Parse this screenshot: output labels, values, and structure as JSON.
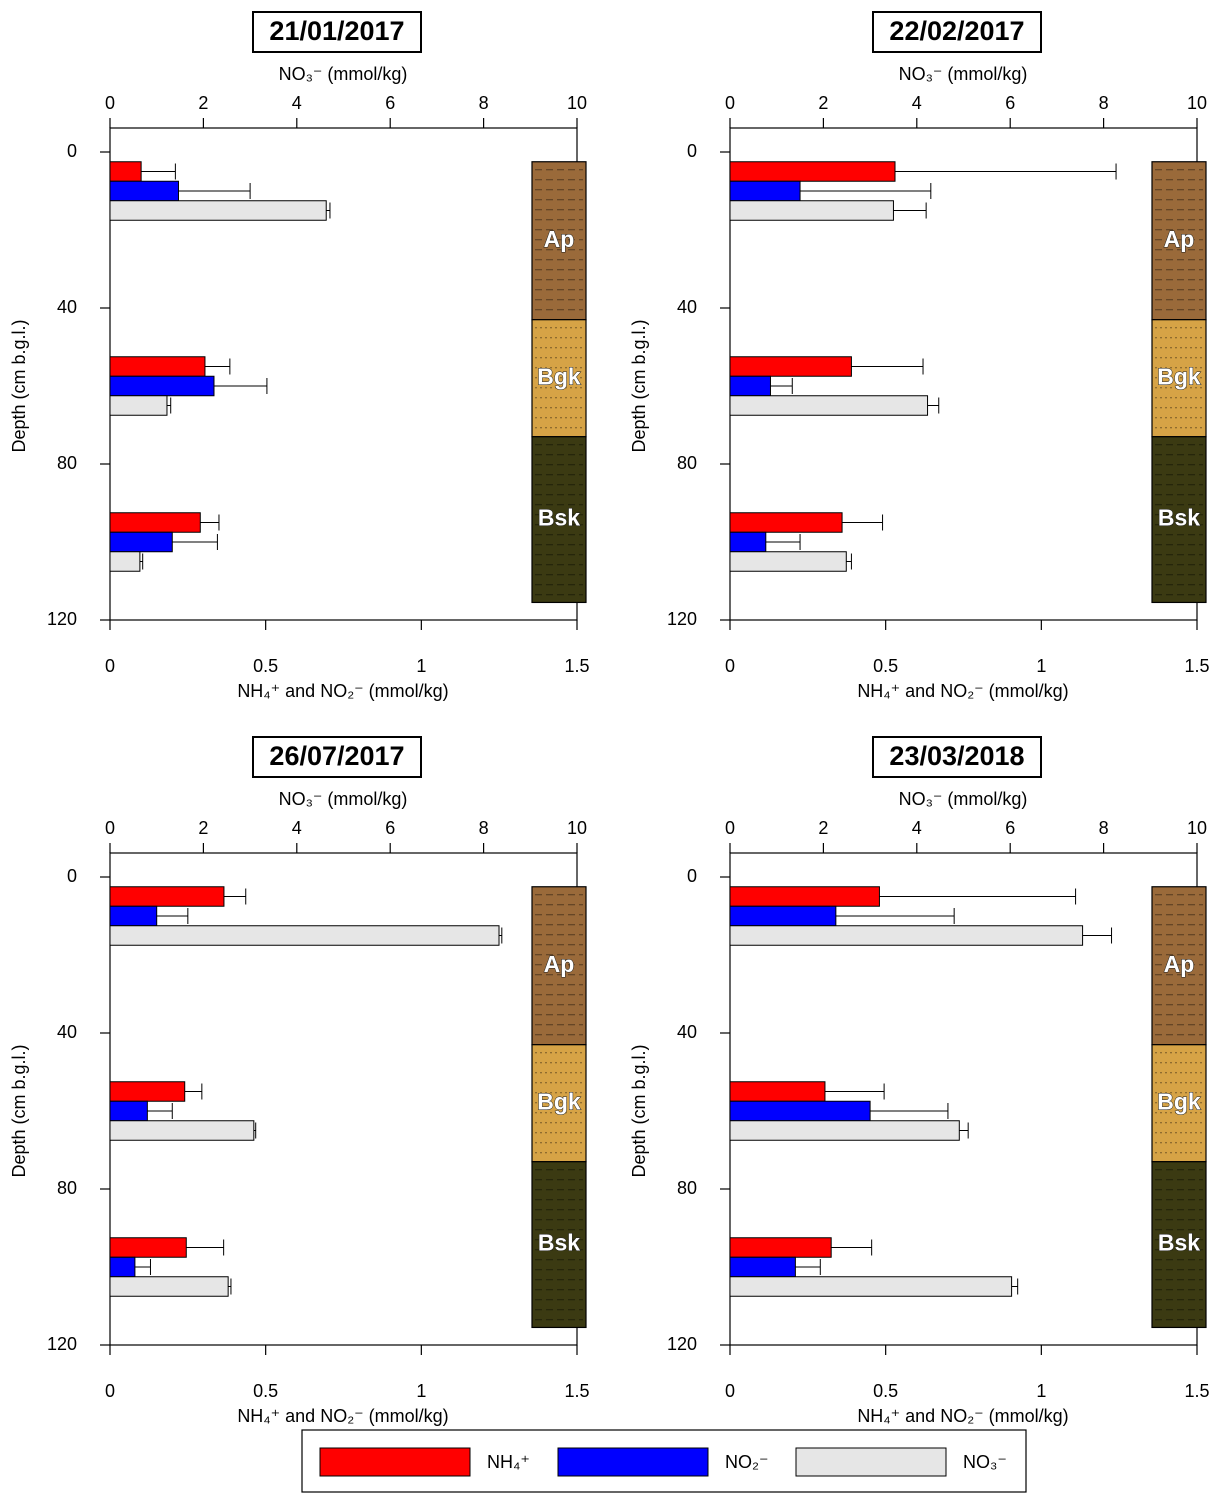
{
  "legend": [
    {
      "name": "NH₄⁺",
      "color": "#ff0000"
    },
    {
      "name": "NO₂⁻",
      "color": "#0000ff"
    },
    {
      "name": "NO₃⁻",
      "color": "#e6e6e6"
    }
  ],
  "chart_data": [
    {
      "type": "bar",
      "title": "21/01/2017",
      "x_label": "NH₄⁺ and NO₂⁻ (mmol/kg)",
      "x2_label": "NO₃⁻ (mmol/kg)",
      "y_label": "Depth (cm b.g.l.)",
      "y": [
        10,
        60,
        100
      ],
      "invert_y": true,
      "xlim": [
        0,
        1.5
      ],
      "xticks": [
        0,
        0.5,
        1,
        1.5
      ],
      "x2lim": [
        0,
        10
      ],
      "x2ticks": [
        0,
        2,
        4,
        6,
        8,
        10
      ],
      "ylim": [
        0,
        120
      ],
      "yticks": [
        0,
        40,
        80,
        120
      ],
      "series": [
        {
          "values": [
            0.1,
            0.305,
            0.29
          ],
          "errors": [
            0.11,
            0.08,
            0.06
          ]
        },
        {
          "values": [
            0.22,
            0.334,
            0.2
          ],
          "errors": [
            0.23,
            0.17,
            0.145
          ]
        },
        {
          "values": [
            4.63,
            1.22,
            0.64
          ],
          "errors": [
            0.08,
            0.08,
            0.06
          ],
          "axis": "x2"
        }
      ],
      "horizons": [
        {
          "name": "Ap",
          "top": 2.5,
          "bottom": 43,
          "color": "#9a6a3a"
        },
        {
          "name": "Bgk",
          "top": 43,
          "bottom": 73,
          "color": "#d6a346"
        },
        {
          "name": "Bsk",
          "top": 73,
          "bottom": 115.5,
          "color": "#3b3a12"
        }
      ]
    },
    {
      "type": "bar",
      "title": "22/02/2017",
      "x_label": "NH₄⁺ and NO₂⁻ (mmol/kg)",
      "x2_label": "NO₃⁻ (mmol/kg)",
      "y_label": "Depth (cm b.g.l.)",
      "y": [
        10,
        60,
        100
      ],
      "invert_y": true,
      "xlim": [
        0,
        1.5
      ],
      "xticks": [
        0,
        0.5,
        1,
        1.5
      ],
      "x2lim": [
        0,
        10
      ],
      "x2ticks": [
        0,
        2,
        4,
        6,
        8,
        10
      ],
      "ylim": [
        0,
        120
      ],
      "yticks": [
        0,
        40,
        80,
        120
      ],
      "series": [
        {
          "values": [
            0.53,
            0.39,
            0.36
          ],
          "errors": [
            0.71,
            0.23,
            0.13
          ]
        },
        {
          "values": [
            0.225,
            0.13,
            0.115
          ],
          "errors": [
            0.42,
            0.07,
            0.11
          ]
        },
        {
          "values": [
            3.5,
            4.23,
            2.49
          ],
          "errors": [
            0.7,
            0.24,
            0.11
          ],
          "axis": "x2"
        }
      ],
      "horizons": [
        {
          "name": "Ap",
          "top": 2.5,
          "bottom": 43,
          "color": "#9a6a3a"
        },
        {
          "name": "Bgk",
          "top": 43,
          "bottom": 73,
          "color": "#d6a346"
        },
        {
          "name": "Bsk",
          "top": 73,
          "bottom": 115.5,
          "color": "#3b3a12"
        }
      ]
    },
    {
      "type": "bar",
      "title": "26/07/2017",
      "x_label": "NH₄⁺ and NO₂⁻ (mmol/kg)",
      "x2_label": "NO₃⁻ (mmol/kg)",
      "y_label": "Depth (cm b.g.l.)",
      "y": [
        10,
        60,
        100
      ],
      "invert_y": true,
      "xlim": [
        0,
        1.5
      ],
      "xticks": [
        0,
        0.5,
        1,
        1.5
      ],
      "x2lim": [
        0,
        10
      ],
      "x2ticks": [
        0,
        2,
        4,
        6,
        8,
        10
      ],
      "ylim": [
        0,
        120
      ],
      "yticks": [
        0,
        40,
        80,
        120
      ],
      "series": [
        {
          "values": [
            0.366,
            0.24,
            0.245
          ],
          "errors": [
            0.07,
            0.055,
            0.12
          ]
        },
        {
          "values": [
            0.15,
            0.12,
            0.08
          ],
          "errors": [
            0.1,
            0.08,
            0.05
          ]
        },
        {
          "values": [
            8.33,
            3.08,
            2.53
          ],
          "errors": [
            0.06,
            0.04,
            0.06
          ],
          "axis": "x2"
        }
      ],
      "horizons": [
        {
          "name": "Ap",
          "top": 2.5,
          "bottom": 43,
          "color": "#9a6a3a"
        },
        {
          "name": "Bgk",
          "top": 43,
          "bottom": 73,
          "color": "#d6a346"
        },
        {
          "name": "Bsk",
          "top": 73,
          "bottom": 115.5,
          "color": "#3b3a12"
        }
      ]
    },
    {
      "type": "bar",
      "title": "23/03/2018",
      "x_label": "NH₄⁺ and NO₂⁻ (mmol/kg)",
      "x2_label": "NO₃⁻ (mmol/kg)",
      "y_label": "Depth (cm b.g.l.)",
      "y": [
        10,
        60,
        100
      ],
      "invert_y": true,
      "xlim": [
        0,
        1.5
      ],
      "xticks": [
        0,
        0.5,
        1,
        1.5
      ],
      "x2lim": [
        0,
        10
      ],
      "x2ticks": [
        0,
        2,
        4,
        6,
        8,
        10
      ],
      "ylim": [
        0,
        120
      ],
      "yticks": [
        0,
        40,
        80,
        120
      ],
      "series": [
        {
          "values": [
            0.48,
            0.305,
            0.325
          ],
          "errors": [
            0.63,
            0.19,
            0.13
          ]
        },
        {
          "values": [
            0.34,
            0.45,
            0.21
          ],
          "errors": [
            0.38,
            0.25,
            0.08
          ]
        },
        {
          "values": [
            7.55,
            4.91,
            6.03
          ],
          "errors": [
            0.62,
            0.19,
            0.13
          ],
          "axis": "x2"
        }
      ],
      "horizons": [
        {
          "name": "Ap",
          "top": 2.5,
          "bottom": 43,
          "color": "#9a6a3a"
        },
        {
          "name": "Bgk",
          "top": 43,
          "bottom": 73,
          "color": "#d6a346"
        },
        {
          "name": "Bsk",
          "top": 73,
          "bottom": 115.5,
          "color": "#3b3a12"
        }
      ]
    }
  ]
}
